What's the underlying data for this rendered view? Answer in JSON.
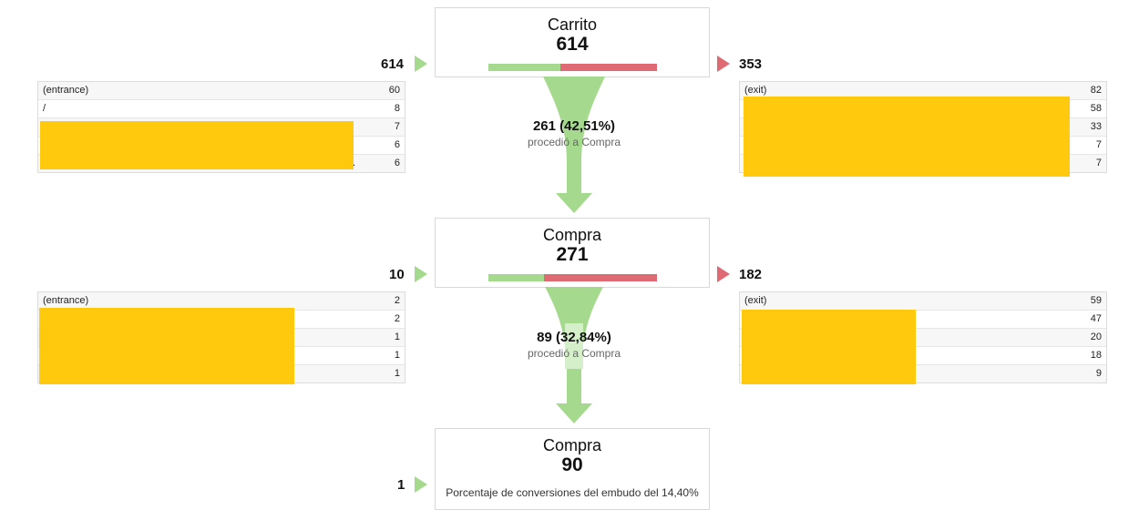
{
  "steps": [
    {
      "name": "Carrito",
      "count": "614",
      "entries": "614",
      "exits": "353",
      "bar_fraction_continue": 0.4251,
      "entrances": [
        {
          "label": "(entrance)",
          "value": "60"
        },
        {
          "label": "/",
          "value": "8"
        },
        {
          "label": "",
          "value": "7"
        },
        {
          "label": "",
          "value": "6"
        },
        {
          "label": ".",
          "value": "6"
        }
      ],
      "exit_list": [
        {
          "label": "(exit)",
          "value": "82"
        },
        {
          "label": "",
          "value": "58"
        },
        {
          "label": "",
          "value": "33"
        },
        {
          "label": "",
          "value": "7"
        },
        {
          "label": "",
          "value": "7"
        }
      ],
      "flow_value": "261 (42,51%)",
      "flow_text": "procedió a Compra"
    },
    {
      "name": "Compra",
      "count": "271",
      "entries": "10",
      "exits": "182",
      "bar_fraction_continue": 0.3284,
      "entrances": [
        {
          "label": "(entrance)",
          "value": "2"
        },
        {
          "label": "",
          "value": "2"
        },
        {
          "label": "",
          "value": "1"
        },
        {
          "label": "",
          "value": "1"
        },
        {
          "label": "",
          "value": "1"
        }
      ],
      "exit_list": [
        {
          "label": "(exit)",
          "value": "59"
        },
        {
          "label": "",
          "value": "47"
        },
        {
          "label": "",
          "value": "20"
        },
        {
          "label": "",
          "value": "18"
        },
        {
          "label": "",
          "value": "9"
        }
      ],
      "flow_value": "89 (32,84%)",
      "flow_text": "procedió a Compra"
    },
    {
      "name": "Compra",
      "count": "90",
      "entries": "1",
      "note": "Porcentaje de conversiones del embudo del 14,40%"
    }
  ],
  "colors": {
    "continue": "#a5d98d",
    "exit": "#e06a74",
    "redaction": "#ffc90e"
  }
}
